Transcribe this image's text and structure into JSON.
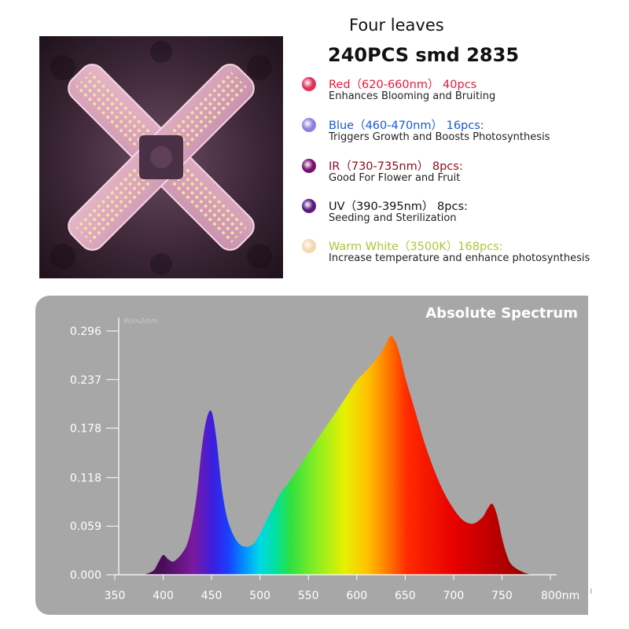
{
  "product": {
    "subtitle": "Four leaves",
    "title": "240PCS smd 2835",
    "photo_alt": "four-leaf LED grow light"
  },
  "legend": [
    {
      "name": "Red（620-660nm） 40pcs",
      "desc": "Enhances Blooming and Bruiting",
      "color": "#e8193a",
      "icon": "red-led-icon",
      "dot": "#e0305a"
    },
    {
      "name": "Blue（460-470nm） 16pcs:",
      "desc": "Triggers Growth and Boosts Photosynthesis",
      "color": "#1a58d6",
      "icon": "blue-led-icon",
      "dot": "#8f7fe0"
    },
    {
      "name": "IR（730-735nm） 8pcs:",
      "desc": "Good For Flower and Fruit",
      "color": "#8a1020",
      "icon": "ir-led-icon",
      "dot": "#7a1070"
    },
    {
      "name": "UV（390-395nm） 8pcs:",
      "desc": "Seeding and Sterilization",
      "color": "#111111",
      "icon": "uv-led-icon",
      "dot": "#5a1a80"
    },
    {
      "name": "Warm White（3500K）168pcs:",
      "desc": "Increase temperature and enhance photosynthesis",
      "color": "#a8c83a",
      "icon": "warm-white-led-icon",
      "dot": "#f4d8b0"
    }
  ],
  "chart_data": {
    "type": "area",
    "title": "Absolute Spectrum",
    "ylabel": "W/m2/nm",
    "xlabel": "",
    "x_unit_label": "nm",
    "xlim": [
      350,
      800
    ],
    "ylim": [
      0,
      0.296
    ],
    "x_ticks": [
      "350",
      "400",
      "450",
      "500",
      "550",
      "600",
      "650",
      "700",
      "750",
      "800nm"
    ],
    "y_ticks": [
      "0.000",
      "0.059",
      "0.118",
      "0.178",
      "0.237",
      "0.296"
    ],
    "grid": false,
    "series": [
      {
        "fill": "visible-spectrum gradient",
        "x": [
          380,
          390,
          395,
          400,
          405,
          410,
          415,
          420,
          425,
          430,
          435,
          440,
          445,
          450,
          455,
          460,
          465,
          470,
          475,
          480,
          485,
          490,
          495,
          500,
          505,
          510,
          515,
          520,
          530,
          540,
          550,
          560,
          570,
          580,
          590,
          600,
          610,
          620,
          625,
          630,
          635,
          640,
          645,
          650,
          660,
          670,
          680,
          690,
          700,
          710,
          720,
          730,
          735,
          740,
          745,
          750,
          755,
          760,
          770,
          780
        ],
        "y": [
          0.0,
          0.005,
          0.015,
          0.024,
          0.019,
          0.016,
          0.02,
          0.027,
          0.038,
          0.062,
          0.1,
          0.155,
          0.19,
          0.198,
          0.165,
          0.11,
          0.074,
          0.055,
          0.043,
          0.036,
          0.034,
          0.035,
          0.04,
          0.05,
          0.062,
          0.074,
          0.085,
          0.097,
          0.113,
          0.13,
          0.148,
          0.166,
          0.183,
          0.2,
          0.218,
          0.236,
          0.248,
          0.262,
          0.27,
          0.28,
          0.29,
          0.283,
          0.265,
          0.24,
          0.2,
          0.16,
          0.127,
          0.1,
          0.08,
          0.066,
          0.062,
          0.07,
          0.08,
          0.086,
          0.072,
          0.045,
          0.024,
          0.012,
          0.004,
          0.0
        ]
      }
    ]
  }
}
